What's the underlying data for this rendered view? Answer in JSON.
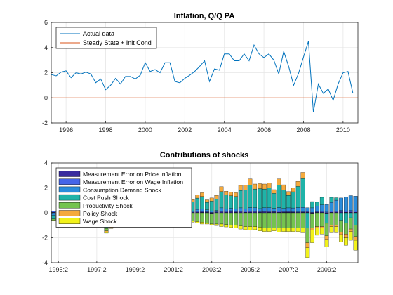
{
  "chart_data": [
    {
      "type": "line",
      "title": "Inflation, Q/Q PA",
      "xlabel": "",
      "ylabel": "",
      "xlim": [
        1995.25,
        2010.75
      ],
      "ylim": [
        -2,
        6
      ],
      "grid": true,
      "legend_position": "top-left",
      "x_tick_labels": [
        "1996",
        "1998",
        "2000",
        "2002",
        "2004",
        "2006",
        "2008",
        "2010"
      ],
      "x_tick_values": [
        1996,
        1998,
        2000,
        2002,
        2004,
        2006,
        2008,
        2010
      ],
      "y_tick_labels": [
        "-2",
        "0",
        "2",
        "4",
        "6"
      ],
      "y_tick_values": [
        -2,
        0,
        2,
        4,
        6
      ],
      "series": [
        {
          "name": "Actual data",
          "color": "#0072BD",
          "x_start": 1995.25,
          "x_step": 0.25,
          "values": [
            1.85,
            1.75,
            2.05,
            2.15,
            1.6,
            2.0,
            1.9,
            2.05,
            1.9,
            1.2,
            1.5,
            0.65,
            1.0,
            1.55,
            1.1,
            1.7,
            1.7,
            1.5,
            1.8,
            2.8,
            2.1,
            2.25,
            2.0,
            2.8,
            2.8,
            1.3,
            1.2,
            1.55,
            1.8,
            2.1,
            2.5,
            2.95,
            1.3,
            2.3,
            2.2,
            3.5,
            3.5,
            2.95,
            2.95,
            3.5,
            2.95,
            4.2,
            3.5,
            3.2,
            3.5,
            3.0,
            1.9,
            3.7,
            2.5,
            1.0,
            1.95,
            3.25,
            4.5,
            -1.15,
            1.1,
            0.35,
            0.7,
            -0.2,
            1.1,
            2.0,
            2.1,
            0.35
          ]
        },
        {
          "name": "Steady State + Init Cond",
          "color": "#D95319",
          "values_constant": 0
        }
      ]
    },
    {
      "type": "bar",
      "stacked": true,
      "title": "Contributions of shocks",
      "xlabel": "",
      "ylabel": "",
      "ylim": [
        -4,
        4
      ],
      "grid": true,
      "legend_position": "top-left",
      "x_start": 1995.0,
      "x_step": 0.25,
      "x_tick_labels": [
        "1995:2",
        "1997:2",
        "1999:2",
        "2001:2",
        "2003:2",
        "2005:2",
        "2007:2",
        "2009:2"
      ],
      "x_tick_values": [
        1995.25,
        1997.25,
        1999.25,
        2001.25,
        2003.25,
        2005.25,
        2007.25,
        2009.25
      ],
      "y_tick_labels": [
        "-4",
        "-2",
        "0",
        "2",
        "4"
      ],
      "y_tick_values": [
        -4,
        -2,
        0,
        2,
        4
      ],
      "series": [
        {
          "name": "Measurement Error on Price Inflation",
          "color": "#3A2C9E",
          "values": [
            0.05,
            0.08,
            0.04,
            0.02,
            -0.05,
            0.04,
            0.03,
            -0.06,
            0.05,
            -0.03,
            -0.05,
            0.02,
            -0.04,
            0.03,
            -0.02,
            0.04,
            0.05,
            0.06,
            -0.03,
            0.05,
            0.07,
            0.08,
            0.05,
            0.06,
            0.04,
            -0.05,
            0.03,
            0.05,
            -0.04,
            0.02,
            0.06,
            0.05,
            0.04,
            -0.05,
            0.03,
            0.07,
            0.06,
            0.08,
            0.05,
            0.07,
            0.05,
            0.06,
            0.07,
            0.04,
            0.08,
            0.05,
            0.06,
            0.05,
            0.04,
            0.05,
            0.04,
            0.03,
            0.04,
            0.05,
            -0.05,
            0.04,
            0.06,
            -0.04,
            0.05,
            0.06,
            0.07,
            0.05,
            0.06,
            0.04
          ]
        },
        {
          "name": "Measurement Error on Wage Inflation",
          "color": "#4565E8",
          "values": [
            0.08,
            0.12,
            0.06,
            -0.05,
            0.05,
            -0.04,
            0.06,
            0.04,
            -0.05,
            0.06,
            0.04,
            -0.05,
            0.05,
            0.04,
            -0.03,
            0.05,
            0.06,
            0.04,
            0.05,
            0.07,
            0.06,
            0.05,
            0.04,
            0.08,
            0.05,
            -0.05,
            0.04,
            0.05,
            0.06,
            0.04,
            0.07,
            0.06,
            0.05,
            0.04,
            0.06,
            0.08,
            0.07,
            0.09,
            0.06,
            0.08,
            0.07,
            0.06,
            0.09,
            0.05,
            0.08,
            0.06,
            0.05,
            0.07,
            0.06,
            0.05,
            0.05,
            0.04,
            0.05,
            0.06,
            0.05,
            0.06,
            0.08,
            0.06,
            0.09,
            0.1,
            0.12,
            0.1,
            0.12,
            0.1
          ]
        },
        {
          "name": "Consumption Demand Shock",
          "color": "#2A8CDB",
          "values": [
            -0.2,
            -0.3,
            -0.15,
            -0.1,
            -0.1,
            -0.15,
            -0.2,
            -0.15,
            -0.1,
            -0.25,
            -0.2,
            -0.2,
            -0.15,
            -0.2,
            -0.1,
            -0.15,
            -0.1,
            -0.15,
            -0.1,
            0.1,
            0.05,
            -0.05,
            0.1,
            0.1,
            0.05,
            -0.1,
            -0.1,
            0.05,
            0.1,
            0.1,
            0.15,
            0.2,
            0.15,
            0.1,
            0.1,
            0.25,
            0.2,
            0.2,
            0.2,
            0.25,
            0.2,
            0.3,
            0.25,
            0.25,
            0.25,
            0.3,
            0.25,
            0.3,
            0.25,
            0.3,
            0.3,
            0.35,
            0.35,
            0.3,
            0.35,
            0.45,
            0.5,
            0.6,
            0.7,
            0.85,
            1.0,
            1.1,
            1.2,
            1.2
          ]
        },
        {
          "name": "Cost Push Shock",
          "color": "#1FB3A8",
          "values": [
            -0.3,
            0.5,
            0.3,
            0.4,
            -0.2,
            0.3,
            0.35,
            0.25,
            0.2,
            -0.3,
            -0.5,
            -1.0,
            -0.6,
            0.25,
            -0.4,
            0.35,
            0.3,
            0.2,
            0.3,
            0.4,
            0.3,
            0.5,
            0.6,
            0.5,
            0.6,
            -0.3,
            -0.2,
            0.5,
            0.6,
            0.7,
            0.9,
            1.0,
            0.6,
            0.8,
            0.9,
            1.3,
            1.1,
            1.0,
            1.0,
            1.4,
            1.5,
            1.8,
            1.5,
            1.6,
            1.5,
            1.6,
            1.2,
            1.8,
            1.5,
            1.0,
            1.3,
            1.7,
            2.3,
            -1.2,
            0.5,
            0.3,
            0.6,
            -0.8,
            0.4,
            0.2,
            -0.6,
            -0.8,
            -0.4,
            -1.0
          ]
        },
        {
          "name": "Productivity Shock",
          "color": "#74C34F",
          "values": [
            -0.1,
            -0.1,
            -0.1,
            -0.15,
            -0.15,
            -0.1,
            -0.1,
            -0.15,
            -0.15,
            -0.2,
            -0.2,
            -0.2,
            -0.3,
            -0.2,
            -0.2,
            -0.2,
            -0.2,
            -0.25,
            -0.3,
            -0.3,
            -0.35,
            -0.4,
            -0.4,
            -0.45,
            -0.5,
            -0.5,
            -0.5,
            -0.6,
            -0.6,
            -0.65,
            -0.7,
            -0.75,
            -0.8,
            -0.85,
            -0.9,
            -0.9,
            -0.95,
            -1.0,
            -1.0,
            -1.05,
            -1.1,
            -1.1,
            -1.1,
            -1.15,
            -1.2,
            -1.2,
            -1.2,
            -1.2,
            -1.2,
            -1.2,
            -1.2,
            -1.2,
            -1.2,
            -1.2,
            -1.15,
            -1.1,
            -1.1,
            -1.0,
            -1.0,
            -1.0,
            -0.95,
            -0.9,
            -0.9,
            -0.9
          ]
        },
        {
          "name": "Policy Shock",
          "color": "#F5AA3C",
          "values": [
            -0.05,
            -0.05,
            0.05,
            0.05,
            -0.05,
            0.05,
            0.05,
            -0.05,
            0.05,
            -0.05,
            -0.1,
            -0.1,
            -0.1,
            0.05,
            -0.05,
            0.1,
            0.1,
            0.05,
            0.1,
            0.15,
            0.1,
            0.1,
            0.15,
            0.15,
            0.15,
            -0.1,
            -0.1,
            0.15,
            0.2,
            0.2,
            0.25,
            0.3,
            0.2,
            0.25,
            0.3,
            0.4,
            0.3,
            0.3,
            0.3,
            0.4,
            0.4,
            0.5,
            0.4,
            0.4,
            0.4,
            0.4,
            0.3,
            0.5,
            0.4,
            0.3,
            0.3,
            0.4,
            0.5,
            -0.4,
            -0.2,
            -0.1,
            -0.1,
            -0.3,
            -0.1,
            -0.1,
            -0.2,
            -0.3,
            -0.2,
            -0.3
          ]
        },
        {
          "name": "Wage Shock",
          "color": "#F2F21A",
          "values": [
            0,
            0,
            0,
            0,
            -0.02,
            0,
            0,
            -0.02,
            0,
            -0.03,
            -0.05,
            -0.08,
            -0.06,
            0,
            -0.04,
            0,
            0,
            0,
            0,
            0,
            0,
            0,
            0,
            0,
            0,
            -0.03,
            -0.03,
            -0.05,
            -0.08,
            -0.1,
            -0.12,
            -0.15,
            -0.1,
            -0.1,
            -0.12,
            -0.2,
            -0.18,
            -0.18,
            -0.2,
            -0.25,
            -0.25,
            -0.3,
            -0.25,
            -0.3,
            -0.3,
            -0.3,
            -0.25,
            -0.35,
            -0.3,
            -0.3,
            -0.3,
            -0.3,
            -0.4,
            -0.8,
            -1.0,
            -0.6,
            -0.5,
            -0.6,
            -0.5,
            -0.5,
            -0.6,
            -0.6,
            -0.7,
            -0.8
          ]
        }
      ]
    }
  ]
}
